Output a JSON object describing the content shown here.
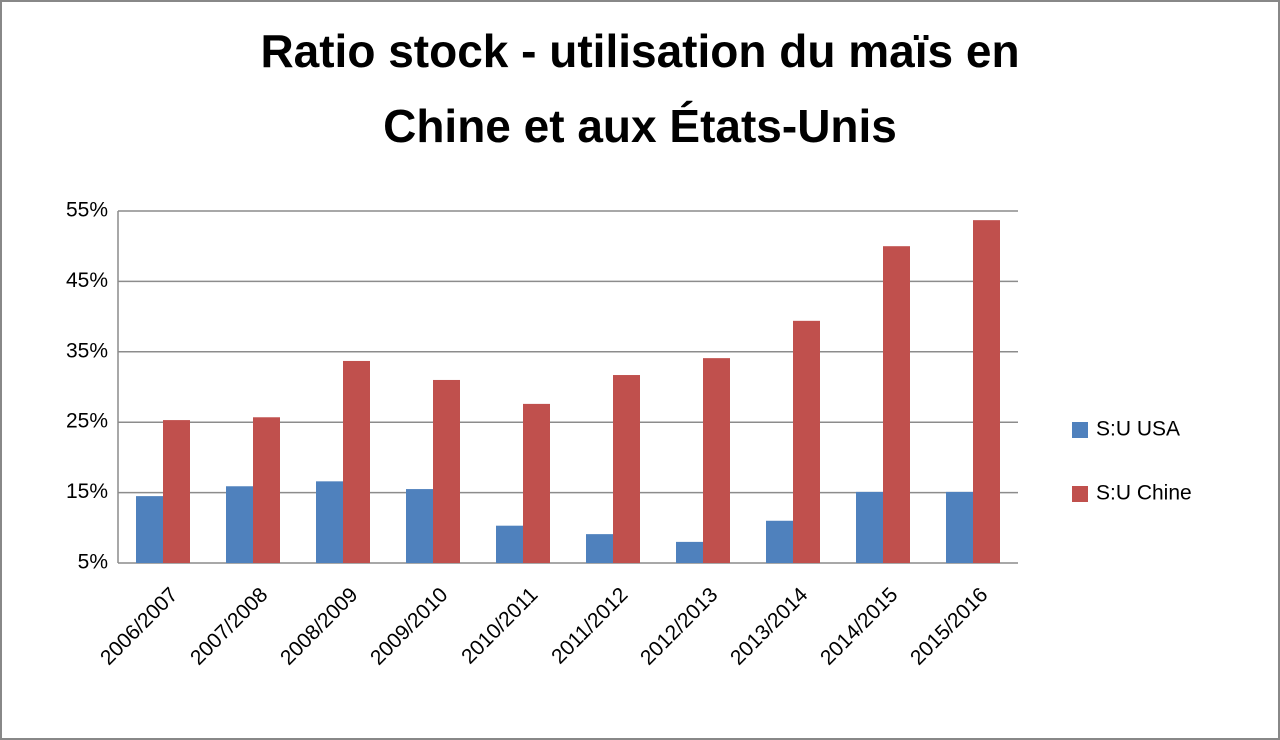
{
  "chart_data": {
    "type": "bar",
    "title": [
      "Ratio stock - utilisation du maïs en",
      "Chine et aux États-Unis"
    ],
    "categories": [
      "2006/2007",
      "2007/2008",
      "2008/2009",
      "2009/2010",
      "2010/2011",
      "2011/2012",
      "2012/2013",
      "2013/2014",
      "2014/2015",
      "2015/2016"
    ],
    "series": [
      {
        "name": "S:U USA",
        "color": "#4f81bd",
        "values": [
          14.5,
          15.9,
          16.6,
          15.5,
          10.3,
          9.1,
          8.0,
          11.0,
          15.1,
          15.1
        ]
      },
      {
        "name": "S:U Chine",
        "color": "#c0504d",
        "values": [
          25.3,
          25.7,
          33.7,
          31.0,
          27.6,
          31.7,
          34.1,
          39.4,
          50.0,
          53.7
        ]
      }
    ],
    "ylim": [
      5,
      55
    ],
    "yticks": [
      {
        "value": 5,
        "label": "5%"
      },
      {
        "value": 15,
        "label": "15%"
      },
      {
        "value": 25,
        "label": "25%"
      },
      {
        "value": 35,
        "label": "35%"
      },
      {
        "value": 45,
        "label": "45%"
      },
      {
        "value": 55,
        "label": "55%"
      }
    ],
    "grid": true,
    "legend": "right"
  }
}
